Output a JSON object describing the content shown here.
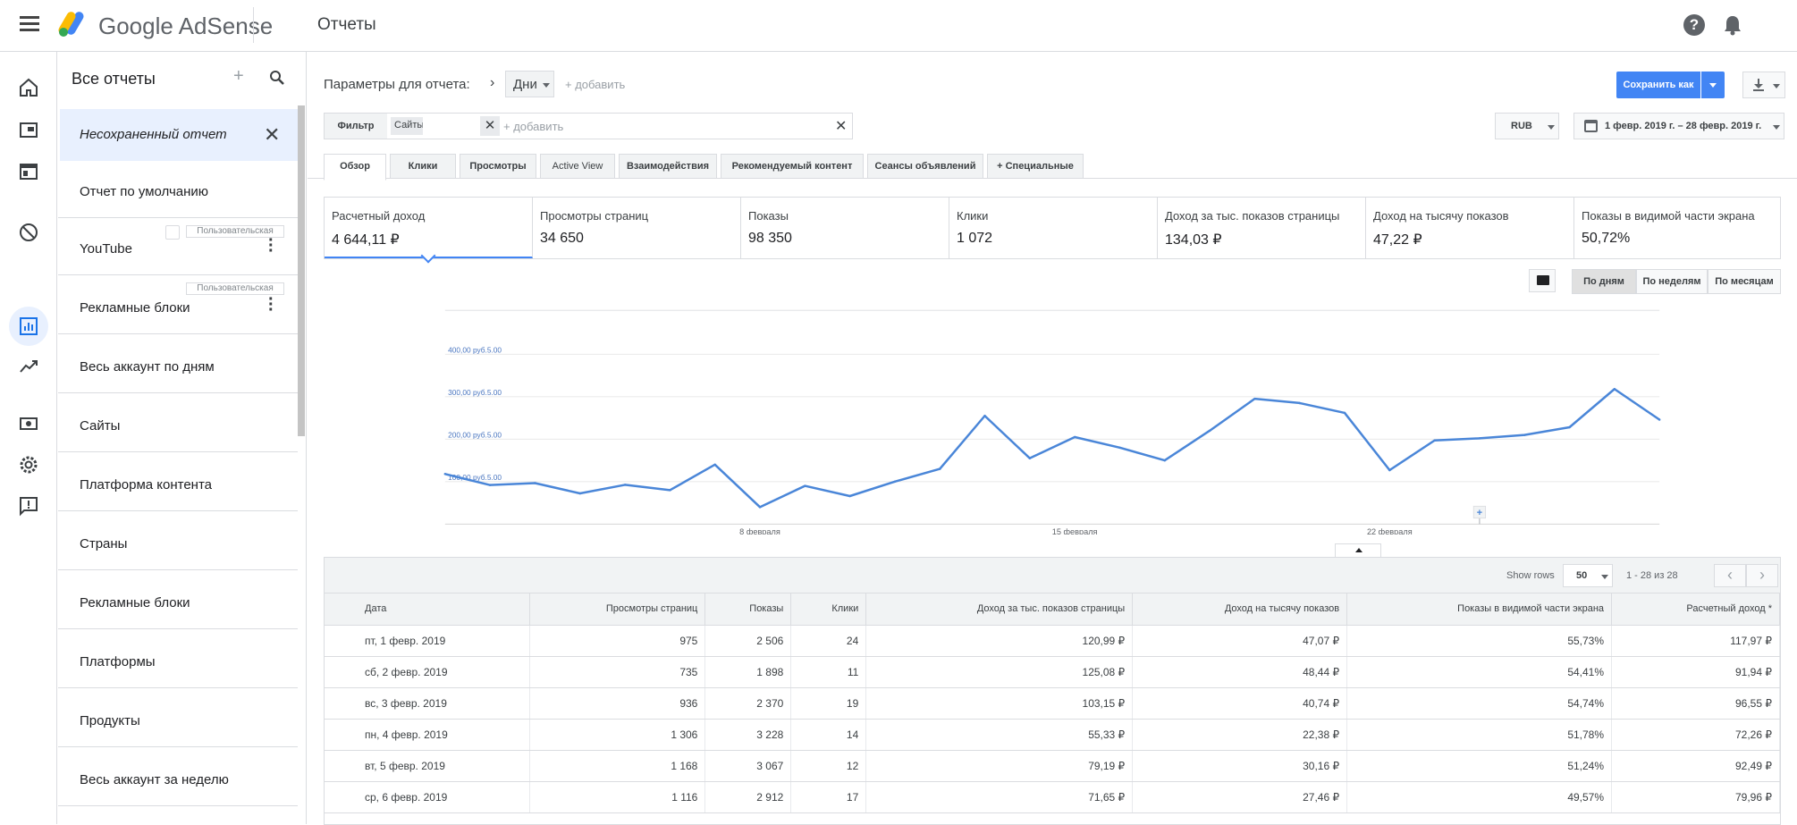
{
  "header": {
    "brand": "Google AdSense",
    "page_title": "Отчеты",
    "help_glyph": "?"
  },
  "reports_panel": {
    "title": "Все отчеты",
    "add_glyph": "+",
    "active_report": "Несохраненный отчет",
    "custom_badge": "Пользовательская",
    "items": [
      {
        "label": "Отчет по умолчанию"
      },
      {
        "label": "YouTube"
      },
      {
        "label": "Рекламные блоки"
      },
      {
        "label": "Весь аккаунт по дням"
      },
      {
        "label": "Сайты"
      },
      {
        "label": "Платформа контента"
      },
      {
        "label": "Страны"
      },
      {
        "label": "Рекламные блоки"
      },
      {
        "label": "Платформы"
      },
      {
        "label": "Продукты"
      },
      {
        "label": "Весь аккаунт за неделю"
      }
    ]
  },
  "params": {
    "label": "Параметры для отчета:",
    "dimension": "Дни",
    "add": "+ добавить"
  },
  "toolbar": {
    "save_as": "Сохранить как"
  },
  "filter": {
    "label": "Фильтр",
    "chip": "Сайты",
    "add": "+ добавить"
  },
  "currency": "RUB",
  "date_range": "1 февр. 2019 г. – 28 февр. 2019 г.",
  "tabs": [
    "Обзор",
    "Клики",
    "Просмотры",
    "Active View",
    "Взаимодействия",
    "Рекомендуемый контент",
    "Сеансы объявлений",
    "+  Специальные"
  ],
  "metrics": [
    {
      "name": "Расчетный доход",
      "value": "4 644,11 ₽"
    },
    {
      "name": "Просмотры страниц",
      "value": "34 650"
    },
    {
      "name": "Показы",
      "value": "98 350"
    },
    {
      "name": "Клики",
      "value": "1 072"
    },
    {
      "name": "Доход за тыс. показов страницы",
      "value": "134,03 ₽"
    },
    {
      "name": "Доход на тысячу показов",
      "value": "47,22 ₽"
    },
    {
      "name": "Показы в видимой части экрана",
      "value": "50,72%"
    }
  ],
  "periods": [
    "По дням",
    "По неделям",
    "По месяцам"
  ],
  "chart_data": {
    "type": "line",
    "x": [
      1,
      2,
      3,
      4,
      5,
      6,
      7,
      8,
      9,
      10,
      11,
      12,
      13,
      14,
      15,
      16,
      17,
      18,
      19,
      20,
      21,
      22,
      23,
      24,
      25,
      26,
      27,
      28
    ],
    "values": [
      117.97,
      91.94,
      96.55,
      72.26,
      92.49,
      79.96,
      140,
      40,
      90,
      66,
      100,
      130,
      255,
      155,
      205,
      180,
      150,
      220,
      295,
      285,
      262,
      127,
      197,
      202,
      210,
      228,
      318,
      246
    ],
    "ytick_labels": [
      "100,00 руб.5.00",
      "200,00 руб.5.00",
      "300,00 руб.5.00",
      "400,00 руб.5.00"
    ],
    "yticks": [
      100,
      200,
      300,
      400
    ],
    "ylim": [
      0,
      400
    ],
    "xtick_labels": [
      {
        "x": 8,
        "label": "8 февраля"
      },
      {
        "x": 15,
        "label": "15 февраля"
      },
      {
        "x": 22,
        "label": "22 февраля"
      }
    ],
    "color": "#4a86d8",
    "annotation_x": 24,
    "annotation_glyph": "+"
  },
  "table": {
    "show_rows_label": "Show rows",
    "rows_value": "50",
    "range": "1 - 28 из 28",
    "prev_glyph": "‹",
    "next_glyph": "›",
    "columns": [
      "Дата",
      "Просмотры страниц",
      "Показы",
      "Клики",
      "Доход за тыс. показов страницы",
      "Доход на тысячу показов",
      "Показы в видимой части экрана",
      "Расчетный доход *"
    ],
    "rows": [
      [
        "пт, 1 февр. 2019",
        "975",
        "2 506",
        "24",
        "120,99 ₽",
        "47,07 ₽",
        "55,73%",
        "117,97 ₽"
      ],
      [
        "сб, 2 февр. 2019",
        "735",
        "1 898",
        "11",
        "125,08 ₽",
        "48,44 ₽",
        "54,41%",
        "91,94 ₽"
      ],
      [
        "вс, 3 февр. 2019",
        "936",
        "2 370",
        "19",
        "103,15 ₽",
        "40,74 ₽",
        "54,74%",
        "96,55 ₽"
      ],
      [
        "пн, 4 февр. 2019",
        "1 306",
        "3 228",
        "14",
        "55,33 ₽",
        "22,38 ₽",
        "51,78%",
        "72,26 ₽"
      ],
      [
        "вт, 5 февр. 2019",
        "1 168",
        "3 067",
        "12",
        "79,19 ₽",
        "30,16 ₽",
        "51,24%",
        "92,49 ₽"
      ],
      [
        "ср, 6 февр. 2019",
        "1 116",
        "2 912",
        "17",
        "71,65 ₽",
        "27,46 ₽",
        "49,57%",
        "79,96 ₽"
      ]
    ]
  }
}
